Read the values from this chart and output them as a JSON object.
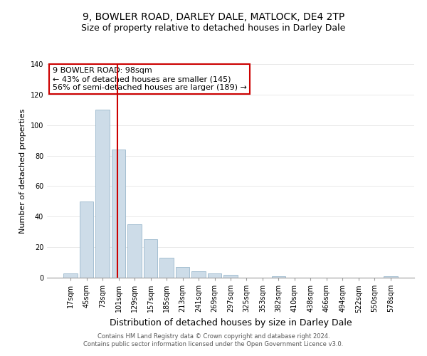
{
  "title": "9, BOWLER ROAD, DARLEY DALE, MATLOCK, DE4 2TP",
  "subtitle": "Size of property relative to detached houses in Darley Dale",
  "xlabel": "Distribution of detached houses by size in Darley Dale",
  "ylabel": "Number of detached properties",
  "bar_labels": [
    "17sqm",
    "45sqm",
    "73sqm",
    "101sqm",
    "129sqm",
    "157sqm",
    "185sqm",
    "213sqm",
    "241sqm",
    "269sqm",
    "297sqm",
    "325sqm",
    "353sqm",
    "382sqm",
    "410sqm",
    "438sqm",
    "466sqm",
    "494sqm",
    "522sqm",
    "550sqm",
    "578sqm"
  ],
  "bar_values": [
    3,
    50,
    110,
    84,
    35,
    25,
    13,
    7,
    4,
    3,
    2,
    0,
    0,
    1,
    0,
    0,
    0,
    0,
    0,
    0,
    1
  ],
  "bar_color": "#cddce8",
  "bar_edge_color": "#9ab8cc",
  "ylim": [
    0,
    140
  ],
  "yticks": [
    0,
    20,
    40,
    60,
    80,
    100,
    120,
    140
  ],
  "vline_color": "#cc0000",
  "vline_x": 2.925,
  "annotation_title": "9 BOWLER ROAD: 98sqm",
  "annotation_line1": "← 43% of detached houses are smaller (145)",
  "annotation_line2": "56% of semi-detached houses are larger (189) →",
  "annotation_box_color": "#ffffff",
  "annotation_box_edge": "#cc0000",
  "footer1": "Contains HM Land Registry data © Crown copyright and database right 2024.",
  "footer2": "Contains public sector information licensed under the Open Government Licence v3.0.",
  "title_fontsize": 10,
  "subtitle_fontsize": 9,
  "xlabel_fontsize": 9,
  "ylabel_fontsize": 8,
  "tick_fontsize": 7,
  "annot_fontsize": 8,
  "footer_fontsize": 6
}
